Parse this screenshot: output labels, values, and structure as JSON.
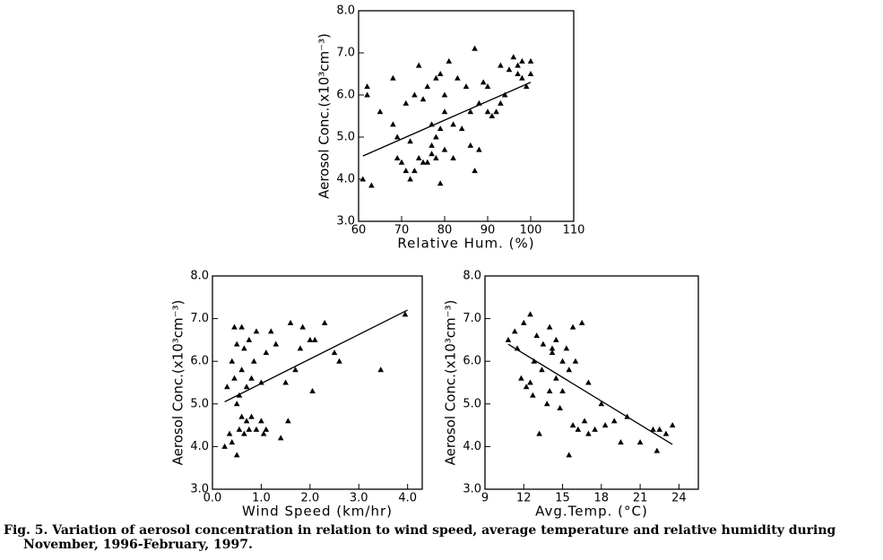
{
  "chart_data": [
    {
      "type": "scatter",
      "x_label": "Relative Hum. (%)",
      "y_label": "Aerosol Conc.(x10³cm⁻³)",
      "xlim": [
        60,
        110
      ],
      "xticks": [
        60,
        70,
        80,
        90,
        100,
        110
      ],
      "ylim": [
        3,
        8
      ],
      "yticks": [
        {
          "value": 3,
          "label": "3.0"
        },
        {
          "value": 4,
          "label": "4.0"
        },
        {
          "value": 5,
          "label": "5.0"
        },
        {
          "value": 6,
          "label": "6.0"
        },
        {
          "value": 7,
          "label": "7.0"
        },
        {
          "value": 8,
          "label": "8.0"
        }
      ],
      "color": "#000000",
      "x": [
        61,
        62,
        63,
        65,
        62,
        68,
        68,
        69,
        69,
        70,
        71,
        71,
        72,
        72,
        73,
        73,
        74,
        74,
        75,
        75,
        76,
        76,
        77,
        77,
        77,
        78,
        78,
        78,
        79,
        79,
        79,
        80,
        80,
        80,
        81,
        82,
        82,
        83,
        84,
        85,
        86,
        86,
        87,
        87,
        88,
        88,
        89,
        90,
        90,
        91,
        92,
        93,
        93,
        94,
        95,
        96,
        97,
        97,
        98,
        98,
        99,
        100,
        100
      ],
      "values": [
        4.0,
        6.0,
        3.85,
        5.6,
        6.2,
        5.3,
        6.4,
        4.5,
        5.0,
        4.4,
        4.2,
        5.8,
        4.0,
        4.9,
        4.2,
        6.0,
        4.5,
        6.7,
        4.4,
        5.9,
        4.4,
        6.2,
        4.6,
        5.3,
        4.8,
        4.5,
        6.4,
        5.0,
        3.9,
        6.5,
        5.2,
        4.7,
        6.0,
        5.6,
        6.8,
        4.5,
        5.3,
        6.4,
        5.2,
        6.2,
        4.8,
        5.6,
        4.2,
        7.1,
        5.8,
        4.7,
        6.3,
        5.6,
        6.2,
        5.5,
        5.6,
        6.7,
        5.8,
        6.0,
        6.6,
        6.9,
        6.5,
        6.7,
        6.8,
        6.4,
        6.2,
        6.8,
        6.5
      ],
      "trend_line": {
        "x": [
          61,
          100
        ],
        "y": [
          4.55,
          6.3
        ]
      }
    },
    {
      "type": "scatter",
      "x_label": "Wind Speed (km/hr)",
      "y_label": "Aerosol Conc.(x10³cm⁻³)",
      "xlim": [
        0,
        4.3
      ],
      "xticks": [
        {
          "value": 0,
          "label": "0.0"
        },
        {
          "value": 1,
          "label": "1.0"
        },
        {
          "value": 2,
          "label": "2.0"
        },
        {
          "value": 3,
          "label": "3.0"
        },
        {
          "value": 4,
          "label": "4.0"
        }
      ],
      "ylim": [
        3,
        8
      ],
      "yticks": [
        {
          "value": 3,
          "label": "3.0"
        },
        {
          "value": 4,
          "label": "4.0"
        },
        {
          "value": 5,
          "label": "5.0"
        },
        {
          "value": 6,
          "label": "6.0"
        },
        {
          "value": 7,
          "label": "7.0"
        },
        {
          "value": 8,
          "label": "8.0"
        }
      ],
      "color": "#000000",
      "x": [
        0.25,
        0.3,
        0.35,
        0.4,
        0.4,
        0.45,
        0.45,
        0.5,
        0.5,
        0.5,
        0.55,
        0.55,
        0.6,
        0.6,
        0.6,
        0.65,
        0.65,
        0.7,
        0.7,
        0.75,
        0.75,
        0.8,
        0.8,
        0.85,
        0.9,
        0.9,
        1.0,
        1.0,
        1.05,
        1.1,
        1.1,
        1.2,
        1.3,
        1.4,
        1.5,
        1.55,
        1.6,
        1.7,
        1.8,
        1.85,
        2.0,
        2.05,
        2.1,
        2.3,
        2.5,
        2.6,
        3.45,
        3.95
      ],
      "values": [
        4.0,
        5.4,
        4.3,
        6.0,
        4.1,
        5.6,
        6.8,
        3.8,
        5.0,
        6.4,
        4.4,
        5.2,
        4.7,
        5.8,
        6.8,
        4.3,
        6.3,
        4.6,
        5.4,
        4.4,
        6.5,
        5.6,
        4.7,
        6.0,
        4.4,
        6.7,
        4.6,
        5.5,
        4.3,
        6.2,
        4.4,
        6.7,
        6.4,
        4.2,
        5.5,
        4.6,
        6.9,
        5.8,
        6.3,
        6.8,
        6.5,
        5.3,
        6.5,
        6.9,
        6.2,
        6.0,
        5.8,
        7.1
      ],
      "trend_line": {
        "x": [
          0.25,
          4.0
        ],
        "y": [
          5.05,
          7.2
        ]
      }
    },
    {
      "type": "scatter",
      "x_label": "Avg.Temp. (°C)",
      "y_label": "Aerosol Conc.(x10³cm⁻³)",
      "xlim": [
        9,
        25.5
      ],
      "xticks": [
        9,
        12,
        15,
        18,
        21,
        24
      ],
      "ylim": [
        3,
        8
      ],
      "yticks": [
        {
          "value": 3,
          "label": "3.0"
        },
        {
          "value": 4,
          "label": "4.0"
        },
        {
          "value": 5,
          "label": "5.0"
        },
        {
          "value": 6,
          "label": "6.0"
        },
        {
          "value": 7,
          "label": "7.0"
        },
        {
          "value": 8,
          "label": "8.0"
        }
      ],
      "color": "#000000",
      "x": [
        10.8,
        11.3,
        11.5,
        11.8,
        12.0,
        12.2,
        12.5,
        12.7,
        12.8,
        13.0,
        13.2,
        13.4,
        13.5,
        13.8,
        14.0,
        14.0,
        14.2,
        14.5,
        14.5,
        14.8,
        15.0,
        15.0,
        15.3,
        15.5,
        15.5,
        15.8,
        16.0,
        16.2,
        16.5,
        16.7,
        17.0,
        17.0,
        17.5,
        18.0,
        18.3,
        19.0,
        19.5,
        20.0,
        21.0,
        22.0,
        22.3,
        22.5,
        23.0,
        23.5,
        15.8,
        14.2,
        12.5
      ],
      "values": [
        6.5,
        6.7,
        6.3,
        5.6,
        6.9,
        5.4,
        7.1,
        5.2,
        6.0,
        6.6,
        4.3,
        5.8,
        6.4,
        5.0,
        6.8,
        5.3,
        6.2,
        5.6,
        6.5,
        4.9,
        6.0,
        5.3,
        6.3,
        3.8,
        5.8,
        4.5,
        6.0,
        4.4,
        6.9,
        4.6,
        4.3,
        5.5,
        4.4,
        5.0,
        4.5,
        4.6,
        4.1,
        4.7,
        4.1,
        4.4,
        3.9,
        4.4,
        4.3,
        4.5,
        6.8,
        6.3,
        5.5
      ],
      "trend_line": {
        "x": [
          10.8,
          23.5
        ],
        "y": [
          6.4,
          4.05
        ]
      }
    }
  ],
  "caption": "Fig. 5. Variation of aerosol concentration in relation to wind speed, average temperature and relative humidity during November, 1996-February, 1997."
}
